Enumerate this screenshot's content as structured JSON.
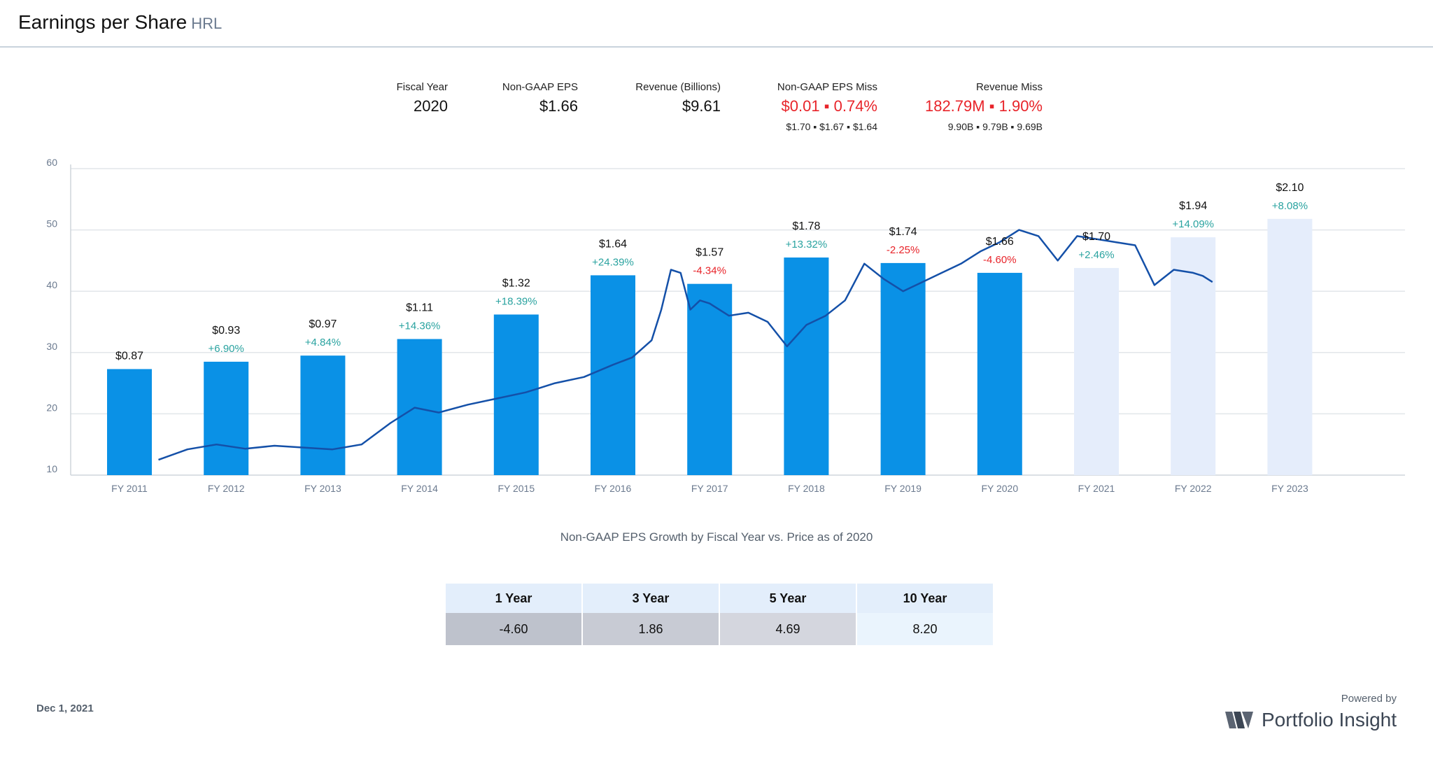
{
  "header": {
    "title": "Earnings per Share",
    "ticker": "HRL"
  },
  "stats": {
    "fiscal_year": {
      "label": "Fiscal Year",
      "value": "2020"
    },
    "eps": {
      "label": "Non-GAAP EPS",
      "value": "$1.66"
    },
    "revenue": {
      "label": "Revenue (Billions)",
      "value": "$9.61"
    },
    "eps_miss": {
      "label": "Non-GAAP EPS Miss",
      "value": "$0.01 ▪ 0.74%",
      "sub": "$1.70 ▪ $1.67 ▪ $1.64"
    },
    "revenue_miss": {
      "label": "Revenue Miss",
      "value": "182.79M ▪ 1.90%",
      "sub": "9.90B ▪ 9.79B ▪ 9.69B"
    }
  },
  "colors": {
    "bar_actual": "#0a91e6",
    "bar_estimate": "#e5edfb",
    "price_line": "#1450a8",
    "positive": "#2aa3a0",
    "negative": "#e8242a",
    "grid": "#e2e6ea"
  },
  "chart_data": {
    "type": "bar",
    "y_range": [
      10,
      60
    ],
    "y_ticks": [
      10,
      20,
      30,
      40,
      50,
      60
    ],
    "categories": [
      "FY 2011",
      "FY 2012",
      "FY 2013",
      "FY 2014",
      "FY 2015",
      "FY 2016",
      "FY 2017",
      "FY 2018",
      "FY 2019",
      "FY 2020",
      "FY 2021",
      "FY 2022",
      "FY 2023"
    ],
    "series": [
      {
        "eps_labels": [
          "$0.87",
          "$0.93",
          "$0.97",
          "$1.11",
          "$1.32",
          "$1.64",
          "$1.57",
          "$1.78",
          "$1.74",
          "$1.66",
          "$1.70",
          "$1.94",
          "$2.10"
        ],
        "growth_labels": [
          "",
          "+6.90%",
          "+4.84%",
          "+14.36%",
          "+18.39%",
          "+24.39%",
          "-4.34%",
          "+13.32%",
          "-2.25%",
          "-4.60%",
          "+2.46%",
          "+14.09%",
          "+8.08%"
        ],
        "values": [
          27.3,
          28.5,
          29.5,
          32.2,
          36.2,
          42.6,
          41.2,
          45.5,
          44.6,
          43.0,
          43.8,
          48.8,
          51.8
        ],
        "estimate": [
          false,
          false,
          false,
          false,
          false,
          false,
          false,
          false,
          false,
          false,
          true,
          true,
          true
        ]
      }
    ],
    "price_line": {
      "x": [
        2011.3,
        2011.6,
        2011.9,
        2012.2,
        2012.5,
        2012.8,
        2013.1,
        2013.4,
        2013.7,
        2013.95,
        2014.2,
        2014.5,
        2014.8,
        2015.1,
        2015.4,
        2015.7,
        2016.0,
        2016.2,
        2016.4,
        2016.5,
        2016.6,
        2016.7,
        2016.8,
        2016.9,
        2017.0,
        2017.2,
        2017.4,
        2017.6,
        2017.8,
        2018.0,
        2018.2,
        2018.4,
        2018.6,
        2018.8,
        2019.0,
        2019.2,
        2019.4,
        2019.6,
        2019.8,
        2020.0,
        2020.2,
        2020.4,
        2020.6,
        2020.8,
        2021.0,
        2021.2,
        2021.4,
        2021.6,
        2021.8,
        2022.0,
        2022.1,
        2022.2
      ],
      "y": [
        12.5,
        14.2,
        15.0,
        14.3,
        14.8,
        14.5,
        14.2,
        15.0,
        18.5,
        21.0,
        20.2,
        21.5,
        22.5,
        23.5,
        25.0,
        26.0,
        28.0,
        29.2,
        32.0,
        37.0,
        43.5,
        43.0,
        37.0,
        38.5,
        38.0,
        36.0,
        36.5,
        35.0,
        31.0,
        34.5,
        36.0,
        38.5,
        44.5,
        42.0,
        40.0,
        41.5,
        43.0,
        44.5,
        46.5,
        48.0,
        50.0,
        49.0,
        45.0,
        49.0,
        48.5,
        48.0,
        47.5,
        41.0,
        43.5,
        43.0,
        42.5,
        41.5
      ]
    },
    "caption": "Non-GAAP EPS Growth by Fiscal Year vs. Price as of 2020"
  },
  "growth_table": {
    "headers": [
      "1 Year",
      "3 Year",
      "5 Year",
      "10 Year"
    ],
    "values": [
      "-4.60",
      "1.86",
      "4.69",
      "8.20"
    ],
    "cell_colors": [
      "#bec2cc",
      "#c8cbd4",
      "#d4d6de",
      "#eaf4fd"
    ]
  },
  "footer": {
    "date": "Dec 1, 2021",
    "powered_by": "Powered by",
    "brand": "Portfolio Insight"
  }
}
